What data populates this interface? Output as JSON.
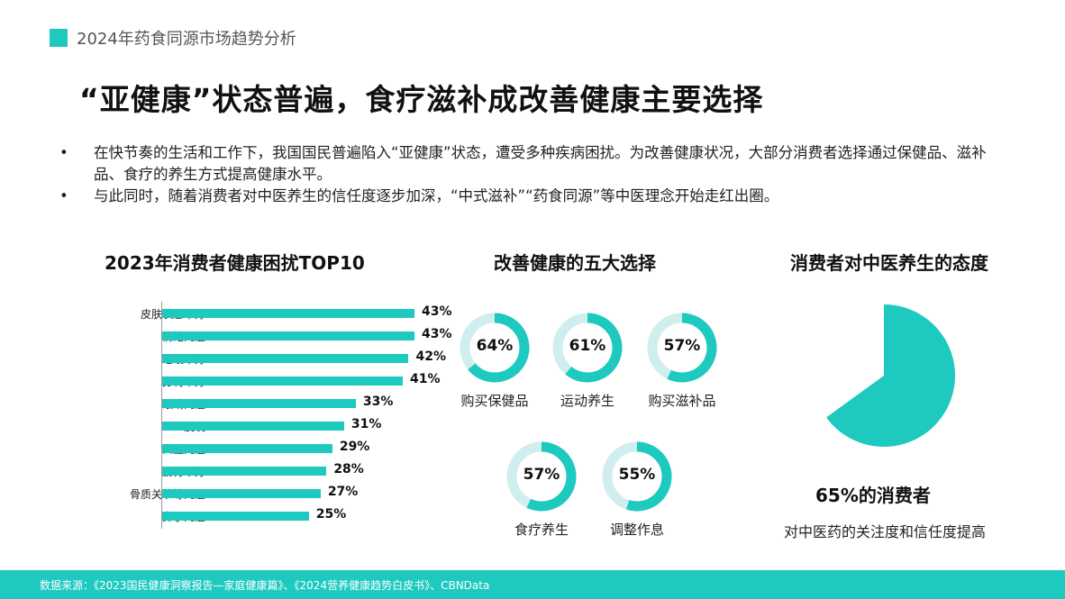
{
  "header": {
    "text": "2024年药食同源市场趋势分析"
  },
  "title": "“亚健康”状态普遍，食疗滋补成改善健康主要选择",
  "bullets": [
    "在快节奏的生活和工作下，我国国民普遍陷入“亚健康”状态，遭受多种疾病困扰。为改善健康状况，大部分消费者选择通过保健品、滋补品、食疗的养生方式提高健康水平。",
    "与此同时，随着消费者对中医养生的信任度逐步加深，“中式滋补”“药食同源”等中医理念开始走红出圈。"
  ],
  "bullet_symbol": "•",
  "chart_data": [
    {
      "type": "bar",
      "orientation": "horizontal",
      "title": "2023年消费者健康困扰TOP10",
      "categories": [
        "皮肤状态不好",
        "情绪问题",
        "睡眠不好",
        "身材不好",
        "眼睛问题",
        "脱发",
        "口腔问题",
        "肠胃不好",
        "骨质关节等问题",
        "鼻子问题"
      ],
      "values": [
        43,
        43,
        42,
        41,
        33,
        31,
        29,
        28,
        27,
        25
      ],
      "value_labels": [
        "43%",
        "43%",
        "42%",
        "41%",
        "33%",
        "31%",
        "29%",
        "28%",
        "27%",
        "25%"
      ],
      "xlim": [
        0,
        43
      ],
      "color": "#1ec9c0",
      "grid": false
    },
    {
      "type": "donut",
      "title": "改善健康的五大选择",
      "categories": [
        "购买保健品",
        "运动养生",
        "购买滋补品",
        "食疗养生",
        "调整作息"
      ],
      "values": [
        64,
        61,
        57,
        57,
        55
      ],
      "value_labels": [
        "64%",
        "61%",
        "57%",
        "57%",
        "55%"
      ],
      "color": "#1ec9c0",
      "track_color": "#cfeeed"
    },
    {
      "type": "pie",
      "title": "消费者对中医养生的态度",
      "values": [
        65
      ],
      "value_labels": [
        "65%的消费者"
      ],
      "description": "对中医药的关注度和信任度提高",
      "color": "#1ec9c0"
    }
  ],
  "footer": {
    "text": "数据来源：《2023国民健康洞察报告—家庭健康篇》、《2024营养健康趋势白皮书》、CBNData"
  },
  "colors": {
    "accent": "#1ec9c0",
    "text": "#111111"
  }
}
